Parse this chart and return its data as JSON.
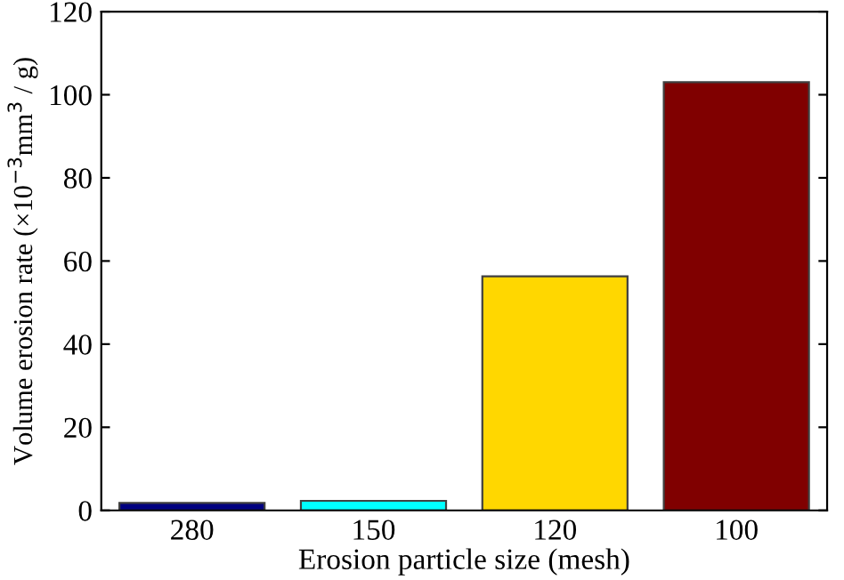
{
  "chart_data": {
    "type": "bar",
    "xlabel": "Erosion particle size (mesh)",
    "ylabel": "Volume erosion rate (×10$^{−3}$mm$^{3}$ / g)",
    "categories": [
      "280",
      "150",
      "120",
      "100"
    ],
    "values": [
      1.8,
      2.3,
      56.3,
      103
    ],
    "colors": [
      "#000080",
      "#00ffff",
      "#ffd700",
      "#800000"
    ],
    "ylim": [
      0,
      120
    ],
    "yticks": [
      0,
      20,
      40,
      60,
      80,
      100,
      120
    ],
    "grid": false
  }
}
